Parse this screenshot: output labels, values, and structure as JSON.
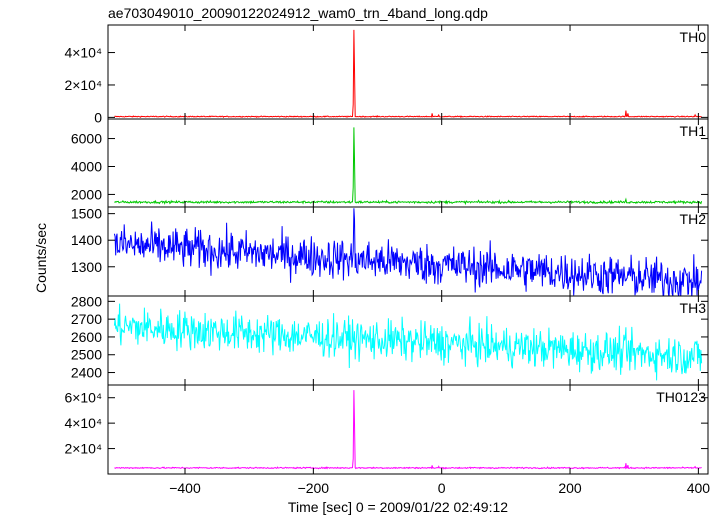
{
  "chart_data": {
    "type": "line",
    "title": "ae703049010_20090122024912_wam0_trn_4band_long.qdp",
    "xlabel": "Time [sec] 0 = 2009/01/22 02:49:12",
    "ylabel": "Counts/sec",
    "xlim": [
      -520,
      415
    ],
    "xticks": [
      -400,
      -200,
      0,
      200,
      400
    ],
    "xtick_labels": [
      "−400",
      "−200",
      "0",
      "200",
      "400"
    ],
    "grid": false,
    "series": [
      {
        "name": "TH0",
        "color": "#ff0000",
        "ylim": [
          -1000,
          57000
        ],
        "yticks": [
          0,
          20000,
          40000
        ],
        "ytick_labels": [
          "0",
          "2×10⁴",
          "4×10⁴"
        ],
        "baseline": 500,
        "noise": 150,
        "trend": 0,
        "spikes": [
          [
            -137,
            54000
          ],
          [
            -136,
            30000
          ],
          [
            -138,
            8000
          ],
          [
            -15,
            2500
          ],
          [
            -5,
            1400
          ],
          [
            287,
            4200
          ],
          [
            290,
            2500
          ],
          [
            395,
            1500
          ]
        ]
      },
      {
        "name": "TH1",
        "color": "#00c800",
        "ylim": [
          1100,
          7400
        ],
        "yticks": [
          2000,
          4000,
          6000
        ],
        "ytick_labels": [
          "2000",
          "4000",
          "6000"
        ],
        "baseline": 1450,
        "noise": 40,
        "trend": 0,
        "spikes": [
          [
            -137,
            6800
          ],
          [
            -136,
            4500
          ],
          [
            -138,
            2500
          ],
          [
            287,
            1650
          ]
        ]
      },
      {
        "name": "TH2",
        "color": "#0000ff",
        "ylim": [
          1190,
          1525
        ],
        "yticks": [
          1300,
          1400,
          1500
        ],
        "ytick_labels": [
          "1300",
          "1400",
          "1500"
        ],
        "baseline": 1385,
        "noise": 38,
        "trend": -140,
        "spikes": [
          [
            -137,
            1520
          ],
          [
            -136,
            1480
          ]
        ]
      },
      {
        "name": "TH3",
        "color": "#00ffff",
        "ylim": [
          2330,
          2830
        ],
        "yticks": [
          2400,
          2500,
          2600,
          2700,
          2800
        ],
        "ytick_labels": [
          "2400",
          "2500",
          "2600",
          "2700",
          "2800"
        ],
        "baseline": 2660,
        "noise": 55,
        "trend": -170,
        "spikes": []
      },
      {
        "name": "TH0123",
        "color": "#ff00ff",
        "ylim": [
          0,
          70000
        ],
        "yticks": [
          20000,
          40000,
          60000
        ],
        "ytick_labels": [
          "2×10⁴",
          "4×10⁴",
          "6×10⁴"
        ],
        "baseline": 4800,
        "noise": 250,
        "trend": 0,
        "spikes": [
          [
            -137,
            66000
          ],
          [
            -136,
            40000
          ],
          [
            -138,
            12000
          ],
          [
            -15,
            6800
          ],
          [
            -5,
            6000
          ],
          [
            287,
            8500
          ],
          [
            290,
            7000
          ],
          [
            395,
            5800
          ]
        ]
      }
    ],
    "x_start": -510,
    "x_end": 405
  }
}
